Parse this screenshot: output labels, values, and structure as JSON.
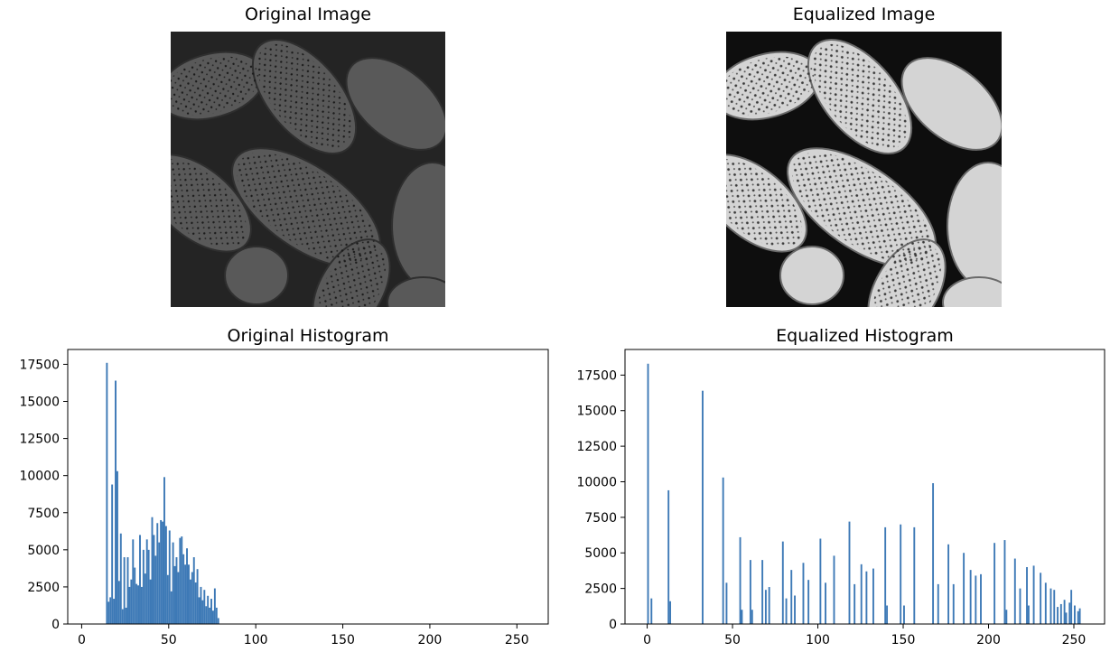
{
  "figure": {
    "original_image_title": "Original Image",
    "equalized_image_title": "Equalized Image"
  },
  "colors": {
    "bar": "#3d79b6",
    "axis": "#000000",
    "original_bg": "#242424",
    "original_blob": "#5a5a5a",
    "equalized_bg": "#0e0e0e",
    "equalized_blob": "#d9d9d9"
  },
  "chart_data": [
    {
      "type": "bar",
      "title": "Original Histogram",
      "xlabel": "",
      "ylabel": "",
      "xlim": [
        -8,
        268
      ],
      "ylim": [
        0,
        18500
      ],
      "xticks": [
        0,
        50,
        100,
        150,
        200,
        250
      ],
      "yticks": [
        0,
        2500,
        5000,
        7500,
        10000,
        12500,
        15000,
        17500
      ],
      "grid": false,
      "bins": [
        [
          14,
          17600
        ],
        [
          15,
          1500
        ],
        [
          16,
          1800
        ],
        [
          17,
          9400
        ],
        [
          18,
          1700
        ],
        [
          19,
          16400
        ],
        [
          20,
          10300
        ],
        [
          21,
          2900
        ],
        [
          22,
          6100
        ],
        [
          23,
          1000
        ],
        [
          24,
          4500
        ],
        [
          25,
          1100
        ],
        [
          26,
          4500
        ],
        [
          27,
          2500
        ],
        [
          28,
          3000
        ],
        [
          29,
          5700
        ],
        [
          30,
          3800
        ],
        [
          31,
          2700
        ],
        [
          32,
          2600
        ],
        [
          33,
          6000
        ],
        [
          34,
          2500
        ],
        [
          35,
          5000
        ],
        [
          36,
          3400
        ],
        [
          37,
          5700
        ],
        [
          38,
          5000
        ],
        [
          39,
          3000
        ],
        [
          40,
          7200
        ],
        [
          41,
          6000
        ],
        [
          42,
          4600
        ],
        [
          43,
          6800
        ],
        [
          44,
          5500
        ],
        [
          45,
          7000
        ],
        [
          46,
          6900
        ],
        [
          47,
          9900
        ],
        [
          48,
          6600
        ],
        [
          49,
          3300
        ],
        [
          50,
          6300
        ],
        [
          51,
          2200
        ],
        [
          52,
          5500
        ],
        [
          53,
          3900
        ],
        [
          54,
          4500
        ],
        [
          55,
          3500
        ],
        [
          56,
          5800
        ],
        [
          57,
          5900
        ],
        [
          58,
          4700
        ],
        [
          59,
          4000
        ],
        [
          60,
          5100
        ],
        [
          61,
          4000
        ],
        [
          62,
          3000
        ],
        [
          63,
          3500
        ],
        [
          64,
          4500
        ],
        [
          65,
          2800
        ],
        [
          66,
          3700
        ],
        [
          67,
          1800
        ],
        [
          68,
          2500
        ],
        [
          69,
          1600
        ],
        [
          70,
          2300
        ],
        [
          71,
          1200
        ],
        [
          72,
          1900
        ],
        [
          73,
          1100
        ],
        [
          74,
          1700
        ],
        [
          75,
          900
        ],
        [
          76,
          2400
        ],
        [
          77,
          1100
        ],
        [
          78,
          400
        ]
      ]
    },
    {
      "type": "bar",
      "title": "Equalized Histogram",
      "xlabel": "",
      "ylabel": "",
      "xlim": [
        -13,
        268
      ],
      "ylim": [
        0,
        19300
      ],
      "xticks": [
        0,
        50,
        100,
        150,
        200,
        250
      ],
      "yticks": [
        0,
        2500,
        5000,
        7500,
        10000,
        12500,
        15000,
        17500
      ],
      "grid": false,
      "bins": [
        [
          0,
          18300
        ],
        [
          2,
          1800
        ],
        [
          12,
          9400
        ],
        [
          13,
          1600
        ],
        [
          32,
          16400
        ],
        [
          44,
          10300
        ],
        [
          46,
          2900
        ],
        [
          54,
          6100
        ],
        [
          55,
          1000
        ],
        [
          60,
          4500
        ],
        [
          61,
          1000
        ],
        [
          67,
          4500
        ],
        [
          69,
          2400
        ],
        [
          71,
          2600
        ],
        [
          79,
          5800
        ],
        [
          81,
          1800
        ],
        [
          84,
          3800
        ],
        [
          86,
          2000
        ],
        [
          91,
          4300
        ],
        [
          94,
          3100
        ],
        [
          101,
          6000
        ],
        [
          104,
          2900
        ],
        [
          109,
          4800
        ],
        [
          118,
          7200
        ],
        [
          121,
          2800
        ],
        [
          125,
          4200
        ],
        [
          128,
          3700
        ],
        [
          132,
          3900
        ],
        [
          139,
          6800
        ],
        [
          140,
          1300
        ],
        [
          148,
          7000
        ],
        [
          150,
          1300
        ],
        [
          156,
          6800
        ],
        [
          167,
          9900
        ],
        [
          170,
          2800
        ],
        [
          176,
          5600
        ],
        [
          179,
          2800
        ],
        [
          185,
          5000
        ],
        [
          189,
          3800
        ],
        [
          192,
          3400
        ],
        [
          195,
          3500
        ],
        [
          203,
          5700
        ],
        [
          209,
          5900
        ],
        [
          210,
          1000
        ],
        [
          215,
          4600
        ],
        [
          218,
          2500
        ],
        [
          222,
          4000
        ],
        [
          223,
          1300
        ],
        [
          226,
          4100
        ],
        [
          230,
          3600
        ],
        [
          233,
          2900
        ],
        [
          236,
          2500
        ],
        [
          238,
          2400
        ],
        [
          240,
          1200
        ],
        [
          242,
          1400
        ],
        [
          244,
          1700
        ],
        [
          245,
          800
        ],
        [
          247,
          1500
        ],
        [
          248,
          2400
        ],
        [
          250,
          1300
        ],
        [
          252,
          900
        ],
        [
          253,
          1100
        ]
      ]
    }
  ]
}
